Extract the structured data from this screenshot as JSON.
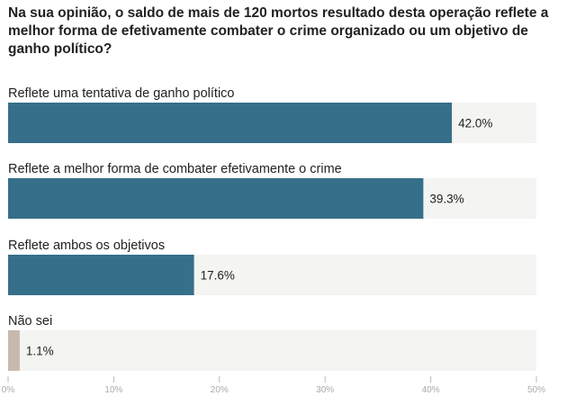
{
  "chart_data": {
    "type": "bar",
    "orientation": "horizontal",
    "title": "Na sua opinião, o saldo de mais de 120 mortos resultado desta operação reflete a melhor forma de efetivamente combater o crime organizado ou um objetivo de ganho político?",
    "categories": [
      "Reflete uma tentativa de ganho político",
      "Reflete a melhor forma de combater efetivamente o crime",
      "Reflete ambos os objetivos",
      "Não sei"
    ],
    "values": [
      42.0,
      39.3,
      17.6,
      1.1
    ],
    "value_labels": [
      "42.0%",
      "39.3%",
      "17.6%",
      "1.1%"
    ],
    "xlim": [
      0,
      50
    ],
    "xticks": [
      "0%",
      "10%",
      "20%",
      "30%",
      "40%",
      "50%"
    ],
    "grid": false,
    "colors": {
      "bar": "#366f89",
      "bar_dont_know": "#c8b9ae",
      "track": "#f4f4f2",
      "tick": "#bbbbbb"
    }
  }
}
